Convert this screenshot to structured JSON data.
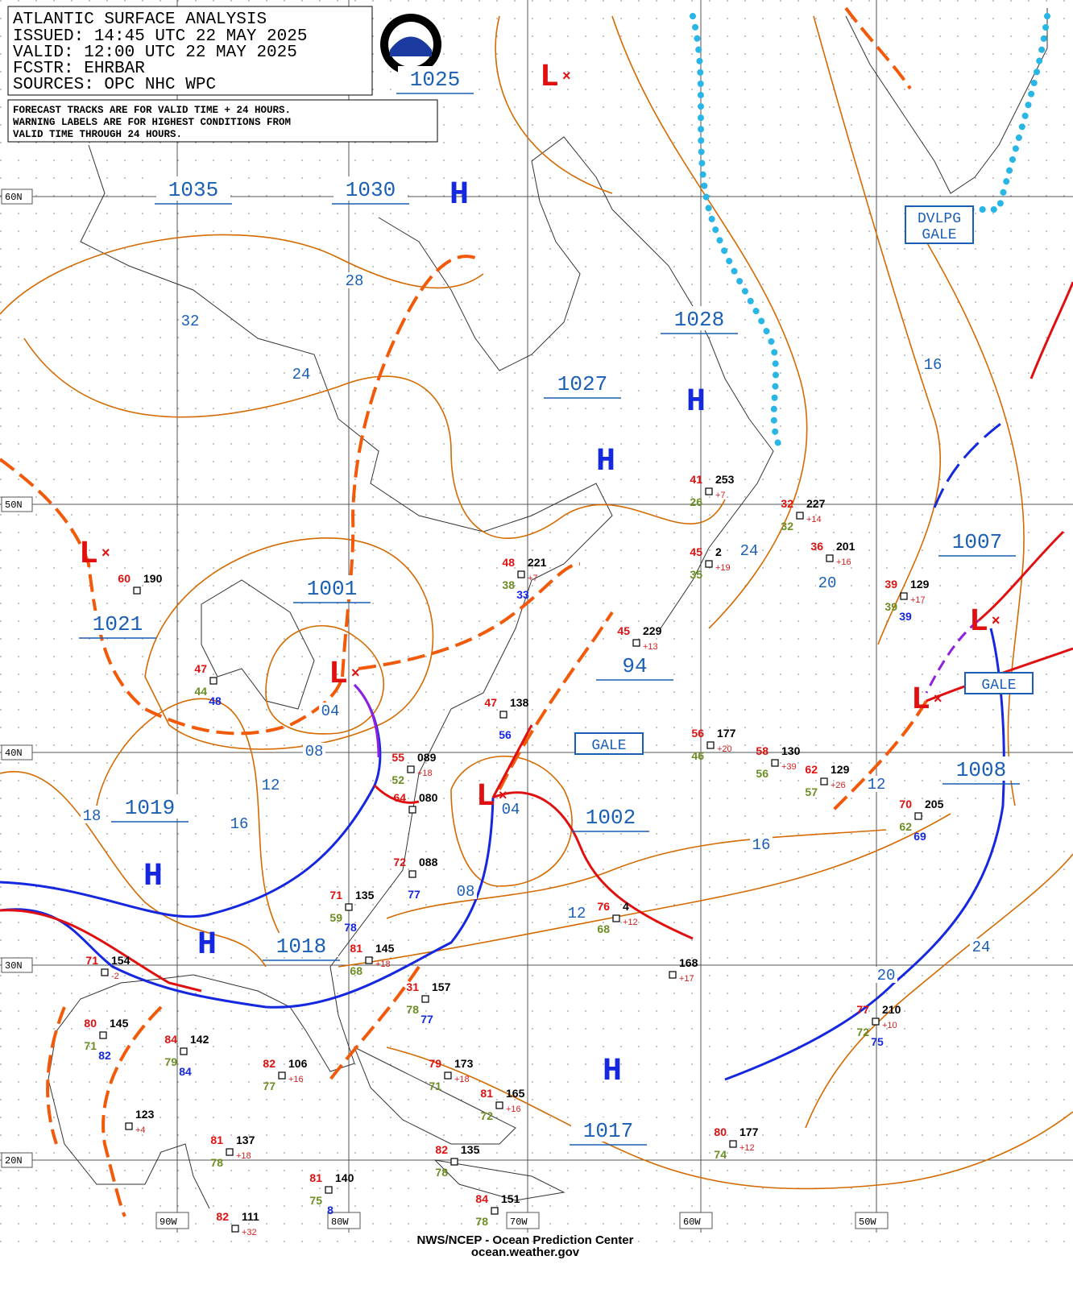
{
  "header": {
    "title": "ATLANTIC SURFACE ANALYSIS",
    "issued": "ISSUED: 14:45 UTC 22 MAY 2025",
    "valid": "VALID:  12:00 UTC 22 MAY 2025",
    "forecaster": "FCSTR:  EHRBAR",
    "sources": "SOURCES: OPC NHC WPC"
  },
  "notice": [
    "FORECAST TRACKS ARE FOR VALID TIME + 24 HOURS.",
    "WARNING LABELS ARE FOR HIGHEST CONDITIONS FROM",
    "VALID TIME THROUGH 24 HOURS."
  ],
  "latitudes": [
    "60N",
    "50N",
    "40N",
    "30N",
    "20N"
  ],
  "longitudes": [
    "90W",
    "80W",
    "70W",
    "60W",
    "50W"
  ],
  "pressure_labels": [
    "1035",
    "1030",
    "1025",
    "1028",
    "1027",
    "1001",
    "1021",
    "1019",
    "1018",
    "1002",
    "1017",
    "1007",
    "1008",
    "94"
  ],
  "isobar_labels": [
    "32",
    "28",
    "24",
    "18",
    "16",
    "12",
    "08",
    "04",
    "04",
    "08",
    "12",
    "16",
    "12",
    "16",
    "24",
    "20",
    "24",
    "20"
  ],
  "centers": [
    "H",
    "H",
    "H",
    "H",
    "H",
    "H",
    "L",
    "L",
    "L",
    "L",
    "L",
    "L"
  ],
  "warnings": [
    [
      "GALE"
    ],
    [
      "GALE"
    ],
    [
      "DVLPG",
      "GALE"
    ]
  ],
  "stations": [
    {
      "temperature": "41",
      "pressure": "253",
      "tendency": "+7",
      "dewpoint": "26"
    },
    {
      "temperature": "32",
      "pressure": "227",
      "tendency": "+14",
      "dewpoint": "32"
    },
    {
      "temperature": "45",
      "pressure": "229",
      "tendency": "+13"
    },
    {
      "temperature": "56",
      "pressure": "177",
      "tendency": "+20",
      "dewpoint": "46"
    },
    {
      "temperature": "58",
      "pressure": "130",
      "tendency": "+39",
      "dewpoint": "56"
    },
    {
      "temperature": "62",
      "pressure": "129",
      "tendency": "+26",
      "dewpoint": "57"
    },
    {
      "temperature": "70",
      "pressure": "205",
      "dewpoint": "62",
      "extra": "69"
    },
    {
      "temperature": "39",
      "pressure": "129",
      "tendency": "+17",
      "dewpoint": "39",
      "extra": "39"
    },
    {
      "temperature": "36",
      "pressure": "201",
      "tendency": "+16"
    },
    {
      "temperature": "48",
      "pressure": "221",
      "tendency": "+7",
      "dewpoint": "38",
      "extra": "33"
    },
    {
      "temperature": "47",
      "pressure": "138",
      "extra": "56"
    },
    {
      "temperature": "60",
      "pressure": "190"
    },
    {
      "temperature": "45",
      "pressure": "2",
      "tendency": "+19",
      "dewpoint": "35"
    },
    {
      "pressure": "168",
      "tendency": "+17"
    },
    {
      "temperature": "77",
      "pressure": "210",
      "tendency": "+10",
      "dewpoint": "72",
      "extra": "75"
    },
    {
      "temperature": "80",
      "pressure": "177",
      "tendency": "+12",
      "dewpoint": "74"
    },
    {
      "temperature": "81",
      "pressure": "165",
      "tendency": "+16",
      "dewpoint": "72"
    },
    {
      "temperature": "79",
      "pressure": "173",
      "tendency": "+18",
      "dewpoint": "71"
    },
    {
      "temperature": "82",
      "pressure": "135",
      "dewpoint": "78"
    },
    {
      "temperature": "84",
      "pressure": "151",
      "dewpoint": "78"
    },
    {
      "temperature": "82",
      "pressure": "106",
      "tendency": "+16",
      "dewpoint": "77"
    },
    {
      "temperature": "84",
      "pressure": "142",
      "dewpoint": "79",
      "extra": "84"
    },
    {
      "temperature": "80",
      "pressure": "145",
      "dewpoint": "71",
      "extra": "82"
    },
    {
      "pressure": "123",
      "tendency": "+4"
    },
    {
      "temperature": "81",
      "pressure": "137",
      "tendency": "+18",
      "dewpoint": "78"
    },
    {
      "temperature": "82",
      "pressure": "111",
      "tendency": "+32"
    },
    {
      "temperature": "81",
      "pressure": "140",
      "dewpoint": "75",
      "extra": "8"
    },
    {
      "temperature": "71",
      "pressure": "135",
      "dewpoint": "59",
      "extra": "78"
    },
    {
      "temperature": "81",
      "pressure": "145",
      "tendency": "+18",
      "dewpoint": "68"
    },
    {
      "temperature": "31",
      "pressure": "157",
      "dewpoint": "78",
      "extra": "77"
    },
    {
      "temperature": "55",
      "pressure": "089",
      "tendency": "+18",
      "dewpoint": "52"
    },
    {
      "temperature": "64",
      "pressure": "080"
    },
    {
      "temperature": "72",
      "pressure": "088",
      "extra": "77"
    },
    {
      "temperature": "47",
      "dewpoint": "44",
      "extra": "48"
    },
    {
      "temperature": "71",
      "pressure": "154",
      "tendency": "-2"
    },
    {
      "temperature": "76",
      "pressure": "4",
      "tendency": "+12",
      "dewpoint": "68"
    }
  ],
  "footer": [
    "NWS/NCEP - Ocean Prediction Center",
    "ocean.weather.gov"
  ]
}
